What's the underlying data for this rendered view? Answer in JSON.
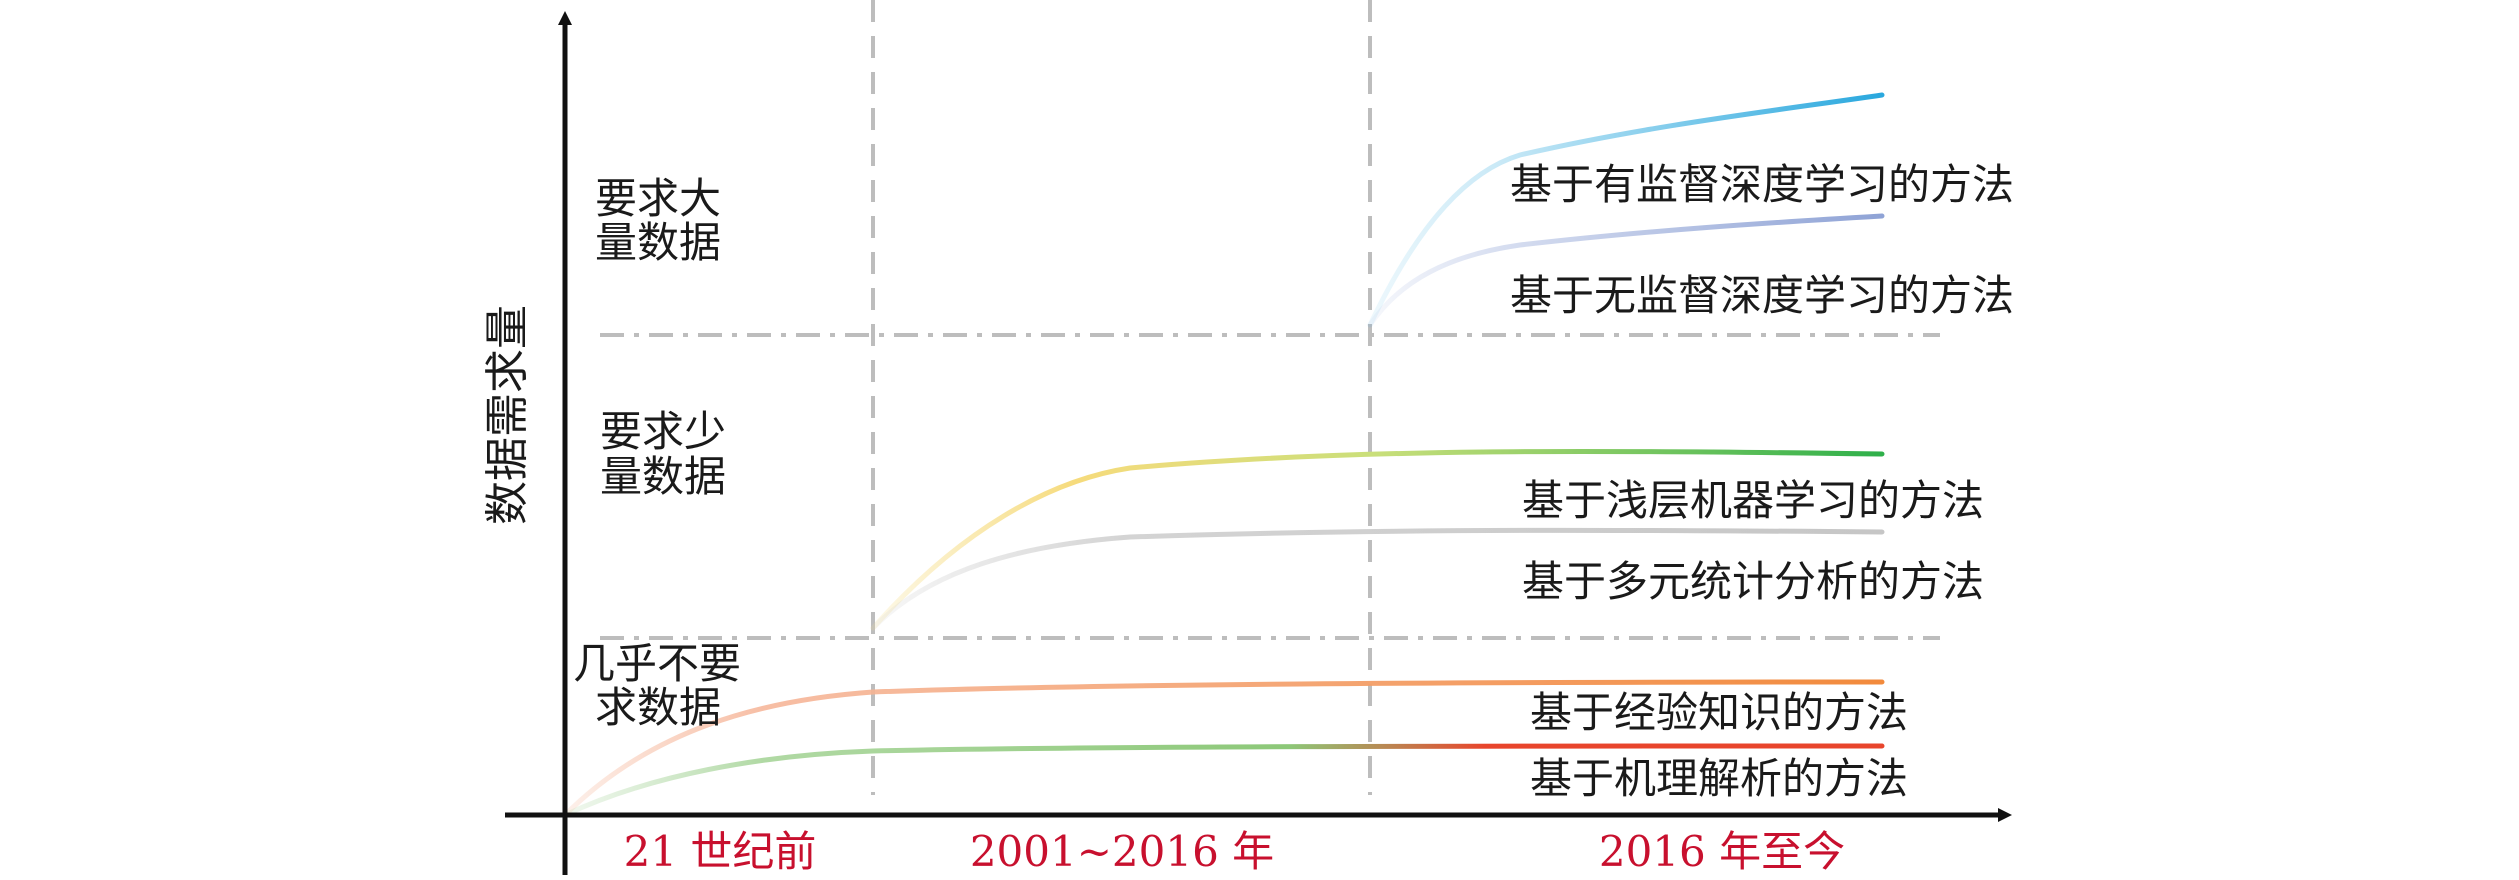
{
  "y_axis_label": "数据需求量",
  "levels": {
    "high": [
      "要求大",
      "量数据"
    ],
    "mid": [
      "要求少",
      "量数据"
    ],
    "low": [
      "几乎不要",
      "求数据"
    ]
  },
  "eras": [
    "21 世纪前",
    "2001~2016 年",
    "2016 年至今"
  ],
  "methods": {
    "supervised_deep": "基于有监督深度学习的方法",
    "unsupervised_deep": "基于无监督深度学习的方法",
    "shallow_ml": "基于浅层机器学习的方法",
    "multivariate_stat": "基于多元统计分析的方法",
    "empirical": "基于经验知识的方法",
    "mechanism": "基于机理解析的方法"
  },
  "colors": {
    "supervised_deep": "#2aa8de",
    "unsupervised_deep": "#8fa3d6",
    "shallow_ml": "#2fb04a",
    "multivariate_stat": "#c9c9c9",
    "empirical": "#f28a3c",
    "mechanism": "#e8452c",
    "era_text": "#c8102e",
    "axis": "#111111",
    "guide": "#bdbdbd"
  }
}
